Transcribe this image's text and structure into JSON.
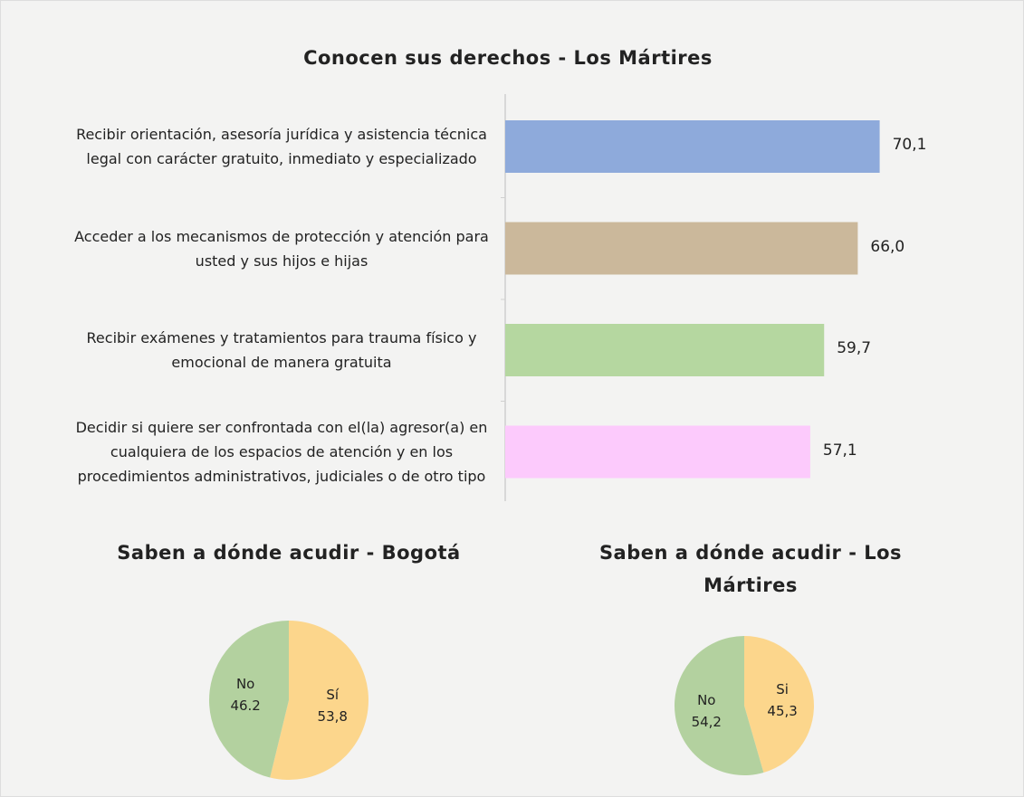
{
  "chart_data": [
    {
      "type": "bar",
      "orientation": "horizontal",
      "title": "Conocen sus derechos - Los Mártires",
      "categories": [
        "Recibir orientación, asesoría jurídica y asistencia técnica legal con carácter gratuito, inmediato y especializado",
        "Acceder a los mecanismos de protección y atención para usted y sus hijos e hijas",
        "Recibir exámenes y tratamientos para trauma físico y emocional de manera gratuita",
        "Decidir si quiere ser confrontada con el(la) agresor(a) en cualquiera de los espacios de atención y en los procedimientos administrativos, judiciales o de otro tipo"
      ],
      "values": [
        70.1,
        66.0,
        59.7,
        57.1
      ],
      "value_labels": [
        "70,1",
        "66,0",
        "59,7",
        "57,1"
      ],
      "colors": [
        "#8eaadb",
        "#cbb89b",
        "#b5d7a0",
        "#fccafc"
      ]
    },
    {
      "type": "pie",
      "title": "Saben a dónde acudir - Bogotá",
      "categories": [
        "Sí",
        "No"
      ],
      "values": [
        53.8,
        46.2
      ],
      "value_labels": [
        "53,8",
        "46.2"
      ],
      "colors": [
        "#fcd68c",
        "#b3d19f"
      ]
    },
    {
      "type": "pie",
      "title": "Saben a dónde acudir - Los Mártires",
      "categories": [
        "Si",
        "No"
      ],
      "values": [
        45.3,
        54.2
      ],
      "value_labels": [
        "45,3",
        "54,2"
      ],
      "colors": [
        "#fcd68c",
        "#b3d19f"
      ]
    }
  ]
}
